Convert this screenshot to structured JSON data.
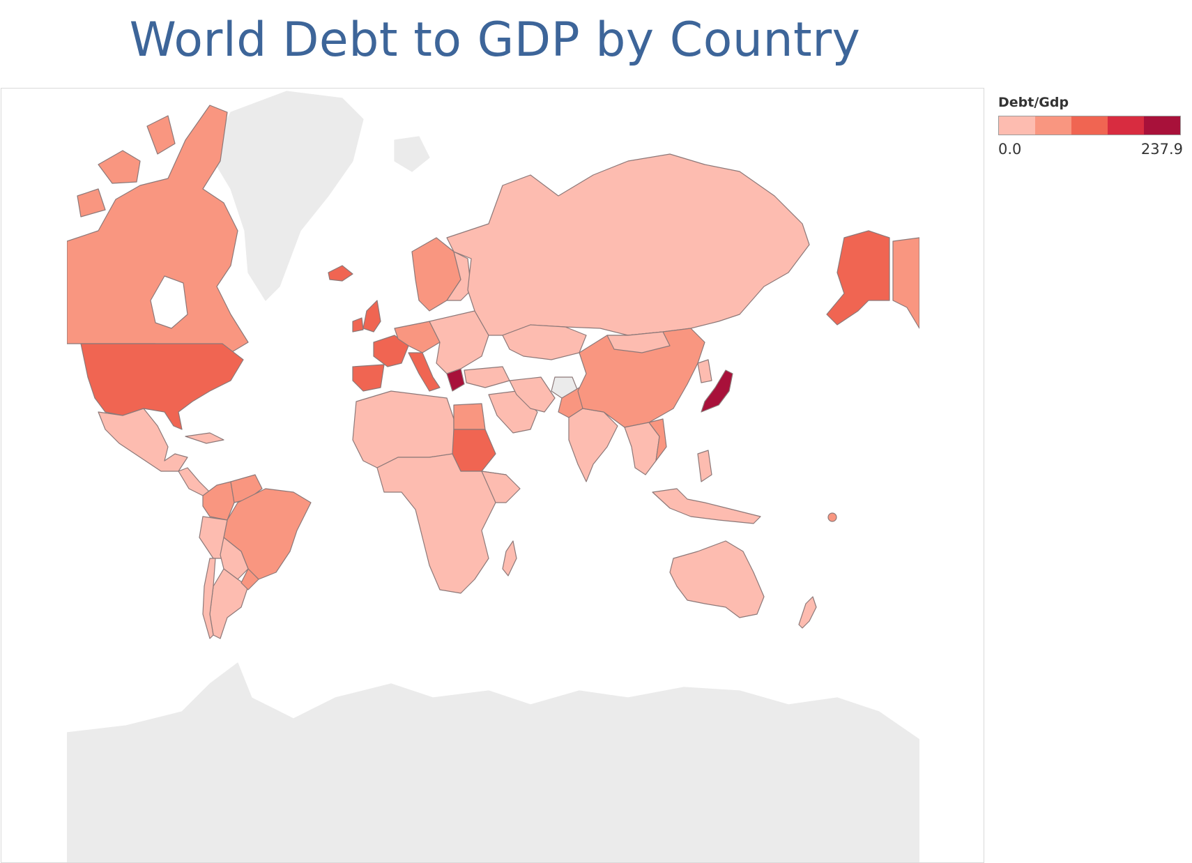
{
  "title": "World Debt to GDP by Country",
  "legend": {
    "title": "Debt/Gdp",
    "min_label": "0.0",
    "max_label": "237.9",
    "colors": [
      "#fdbcb0",
      "#f99680",
      "#f06552",
      "#d82c40",
      "#a8113a"
    ]
  },
  "colors": {
    "title": "#3d6599",
    "no_data_land": "#ebebeb",
    "border": "#8c7878"
  }
}
